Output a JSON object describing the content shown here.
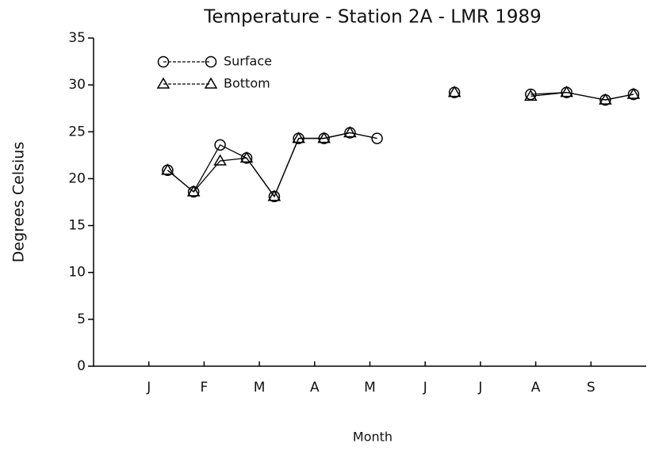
{
  "chart_data": {
    "type": "line",
    "title": "Temperature - Station 2A - LMR 1989",
    "x_label": "Month",
    "y_label": "Degrees Celsius",
    "x": [
      1.34,
      1.81,
      2.29,
      2.77,
      3.27,
      3.71,
      4.17,
      4.64,
      5.13,
      null,
      6.53,
      null,
      7.91,
      8.56,
      9.26,
      9.77
    ],
    "series": [
      {
        "name": "Surface",
        "color": "#000000",
        "marker": "circle",
        "values": [
          20.9,
          18.6,
          23.6,
          22.2,
          18.1,
          24.3,
          24.3,
          24.9,
          24.3,
          null,
          29.2,
          null,
          29.0,
          29.2,
          28.4,
          29.0
        ]
      },
      {
        "name": "Bottom",
        "color": "#000000",
        "marker": "triangle",
        "values": [
          20.9,
          18.6,
          21.9,
          22.2,
          18.1,
          24.3,
          24.3,
          24.9,
          null,
          null,
          29.2,
          null,
          28.8,
          29.2,
          28.4,
          29.0
        ]
      }
    ],
    "xlim": [
      0,
      10
    ],
    "xticks": [
      {
        "value": 1,
        "label": "J"
      },
      {
        "value": 2,
        "label": "F"
      },
      {
        "value": 3,
        "label": "M"
      },
      {
        "value": 4,
        "label": "A"
      },
      {
        "value": 5,
        "label": "M"
      },
      {
        "value": 6,
        "label": "J"
      },
      {
        "value": 7,
        "label": "J"
      },
      {
        "value": 8,
        "label": "A"
      },
      {
        "value": 9,
        "label": "S"
      }
    ],
    "ylim": [
      0,
      35
    ],
    "yticks": [
      0,
      5,
      10,
      15,
      20,
      25,
      30,
      35
    ],
    "grid": false,
    "legend": "upper left"
  }
}
